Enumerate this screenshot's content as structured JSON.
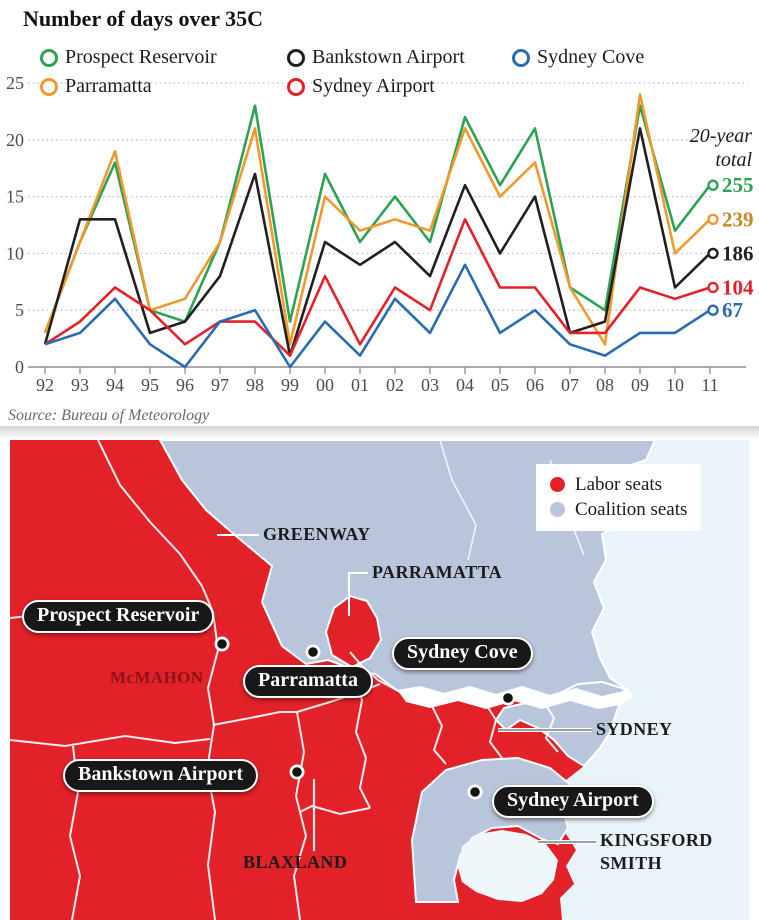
{
  "chart_data": {
    "type": "line",
    "title": "Number of days over 35C",
    "xlabel": "",
    "ylabel": "",
    "ylim": [
      0,
      25
    ],
    "y_ticks": [
      0,
      5,
      10,
      15,
      20,
      25
    ],
    "grid": "dotted-horizontal",
    "legend_position": "top",
    "annotation_lines": [
      "20-year",
      "total"
    ],
    "x_labels": [
      "92",
      "93",
      "94",
      "95",
      "96",
      "97",
      "98",
      "99",
      "00",
      "01",
      "02",
      "03",
      "04",
      "05",
      "06",
      "07",
      "08",
      "09",
      "10",
      "11"
    ],
    "series": [
      {
        "name": "Prospect Reservoir",
        "color": "#2da254",
        "total": "255",
        "values": [
          3,
          11,
          18,
          5,
          4,
          11,
          23,
          4,
          17,
          11,
          15,
          11,
          22,
          16,
          21,
          7,
          5,
          23,
          12,
          16
        ]
      },
      {
        "name": "Parramatta",
        "color": "#f0992c",
        "total_color": "#c9872a",
        "total": "239",
        "values": [
          3,
          11,
          19,
          5,
          6,
          11,
          21,
          2,
          15,
          12,
          13,
          12,
          21,
          15,
          18,
          7,
          2,
          24,
          10,
          13
        ]
      },
      {
        "name": "Bankstown Airport",
        "color": "#231f20",
        "total": "186",
        "values": [
          2,
          13,
          13,
          3,
          4,
          8,
          17,
          1,
          11,
          9,
          11,
          8,
          16,
          10,
          15,
          3,
          4,
          21,
          7,
          10
        ]
      },
      {
        "name": "Sydney Airport",
        "color": "#e2222a",
        "total": "104",
        "values": [
          2,
          4,
          7,
          5,
          2,
          4,
          4,
          1,
          8,
          2,
          7,
          5,
          13,
          7,
          7,
          3,
          3,
          7,
          6,
          7
        ]
      },
      {
        "name": "Sydney Cove",
        "color": "#2a6cb4",
        "total": "67",
        "values": [
          2,
          3,
          6,
          2,
          0,
          4,
          5,
          0,
          4,
          1,
          6,
          3,
          9,
          3,
          5,
          2,
          1,
          3,
          3,
          5
        ]
      }
    ]
  },
  "source": "Source: Bureau of Meteorology",
  "map": {
    "colors": {
      "labor": "#e32128",
      "coalition": "#b9c5db",
      "water": "#dcebf5",
      "ocean": "#e9f3fa",
      "harbour": "#ffffff"
    },
    "legend": [
      {
        "label": "Labor seats",
        "key": "labor"
      },
      {
        "label": "Coalition seats",
        "key": "coalition"
      }
    ],
    "stations": [
      {
        "label": "Prospect Reservoir"
      },
      {
        "label": "Parramatta"
      },
      {
        "label": "Sydney Cove"
      },
      {
        "label": "Bankstown Airport"
      },
      {
        "label": "Sydney Airport"
      }
    ],
    "electorates": [
      {
        "name": "GREENWAY"
      },
      {
        "name": "PARRAMATTA"
      },
      {
        "name": "McMAHON"
      },
      {
        "name": "SYDNEY"
      },
      {
        "name": "BLAXLAND"
      },
      {
        "name": "KINGSFORD SMITH"
      }
    ]
  }
}
